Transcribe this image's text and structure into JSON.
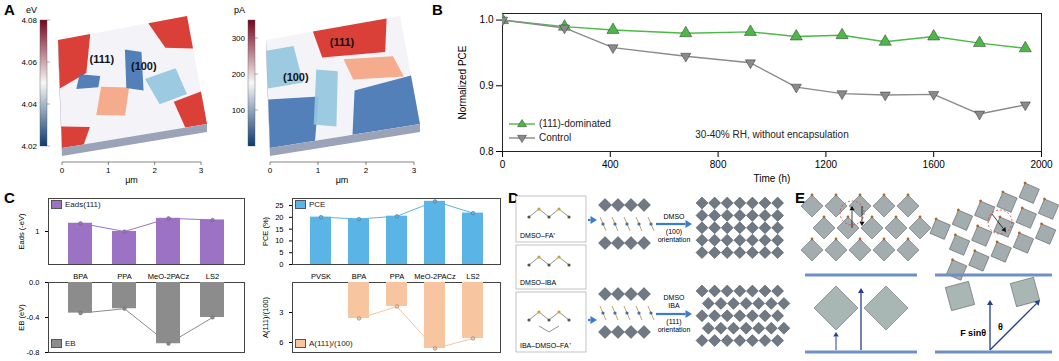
{
  "panel_labels": [
    "A",
    "B",
    "C",
    "D",
    "E"
  ],
  "panel_A": {
    "maps": [
      {
        "unit": "eV",
        "colorbar_range": [
          4.02,
          4.08
        ],
        "colorbar_ticks": [
          4.02,
          4.04,
          4.06,
          4.08
        ],
        "regions": [
          "(111)",
          "(100)"
        ]
      },
      {
        "unit": "pA",
        "colorbar_range": [
          0,
          350
        ],
        "colorbar_ticks": [
          100,
          200,
          300
        ],
        "regions": [
          "(111)",
          "(100)"
        ]
      }
    ],
    "x_unit": "μm",
    "xlim": [
      0,
      3
    ],
    "xticks": [
      0,
      1,
      2,
      3
    ]
  },
  "chart_data": [
    {
      "type": "line",
      "x": [
        0,
        230,
        410,
        680,
        920,
        1090,
        1260,
        1420,
        1600,
        1770,
        1940
      ],
      "series": [
        {
          "name": "(111)-dominated",
          "color": "#4db848",
          "marker": "triangle",
          "values": [
            1.0,
            0.99,
            0.985,
            0.98,
            0.982,
            0.975,
            0.977,
            0.967,
            0.975,
            0.965,
            0.957
          ]
        },
        {
          "name": "Control",
          "color": "#8a8a8a",
          "marker": "triangle-down",
          "values": [
            1.0,
            0.988,
            0.958,
            0.945,
            0.935,
            0.898,
            0.888,
            0.886,
            0.887,
            0.857,
            0.871
          ]
        }
      ],
      "x_label": "Time (h)",
      "y_label": "Normalized PCE",
      "xlim": [
        0,
        2000
      ],
      "xticks": [
        0,
        400,
        800,
        1200,
        1600,
        2000
      ],
      "ylim": [
        0.8,
        1.01
      ],
      "yticks": [
        0.8,
        0.9,
        {
          "value": 1,
          "label": "1.0"
        }
      ],
      "annotations": [
        "30-40% RH, without encapsulation"
      ],
      "legend": "bottom-left"
    },
    {
      "type": "bar",
      "categories": [
        "BPA",
        "PPA",
        "MeO-2PACz",
        "LS2"
      ],
      "series": [
        {
          "name": "Eads(111)",
          "color": "#9b72c4",
          "values": [
            1.25,
            1.0,
            1.4,
            1.35
          ]
        }
      ],
      "y_label": "Eads (-eV)",
      "ylim": [
        0,
        2
      ],
      "yticks": [
        1
      ],
      "legend": "top-left"
    },
    {
      "type": "bar",
      "categories": [
        "BPA",
        "PPA",
        "MeO-2PACz",
        "LS2"
      ],
      "series": [
        {
          "name": "EB",
          "color": "#8c8c8c",
          "values": [
            -0.35,
            -0.3,
            -0.7,
            -0.4
          ]
        }
      ],
      "y_label": "EB (eV)",
      "ylim": [
        -0.8,
        0
      ],
      "yticks": [
        {
          "value": 0,
          "label": "0.0"
        },
        -0.4,
        -0.8
      ],
      "legend": "bottom-left",
      "tick_labels": "y"
    },
    {
      "type": "bar",
      "categories": [
        "PVSK",
        "BPA",
        "PPA",
        "MeO-2PACz",
        "LS2"
      ],
      "series": [
        {
          "name": "PCE",
          "color": "#5ab4e5",
          "values": [
            20.1,
            19.3,
            20.5,
            26.8,
            21.8
          ]
        }
      ],
      "y_label": "PCE (%)",
      "ylim": [
        0,
        28
      ],
      "yticks": [
        0,
        5,
        10,
        15,
        20,
        25
      ],
      "legend": "top-left"
    },
    {
      "type": "bar",
      "categories": [
        "PVSK",
        "BPA",
        "PPA",
        "MeO-2PACz",
        "LS2"
      ],
      "series": [
        {
          "name": "A(111)/(100)",
          "color": "#f7c59f",
          "values": [
            null,
            3.6,
            2.4,
            6.6,
            5.6
          ]
        }
      ],
      "y_label": "A(111)/(100)",
      "ylim": [
        0,
        7
      ],
      "yticks": [
        3,
        6
      ],
      "legend": "bottom-left",
      "tick_labels": "y"
    }
  ],
  "panel_D": {
    "molecules": [
      "DMSO–FA⁺",
      "DMSO–IBA",
      "IBA–DMSO–FA⁺"
    ],
    "paths": [
      {
        "reagents": "DMSO",
        "result": "(100) orientation"
      },
      {
        "reagents": "DMSO IBA",
        "result": "(111) orientation"
      }
    ]
  },
  "panel_E": {
    "labels": [
      "F sinθ",
      "θ"
    ]
  }
}
